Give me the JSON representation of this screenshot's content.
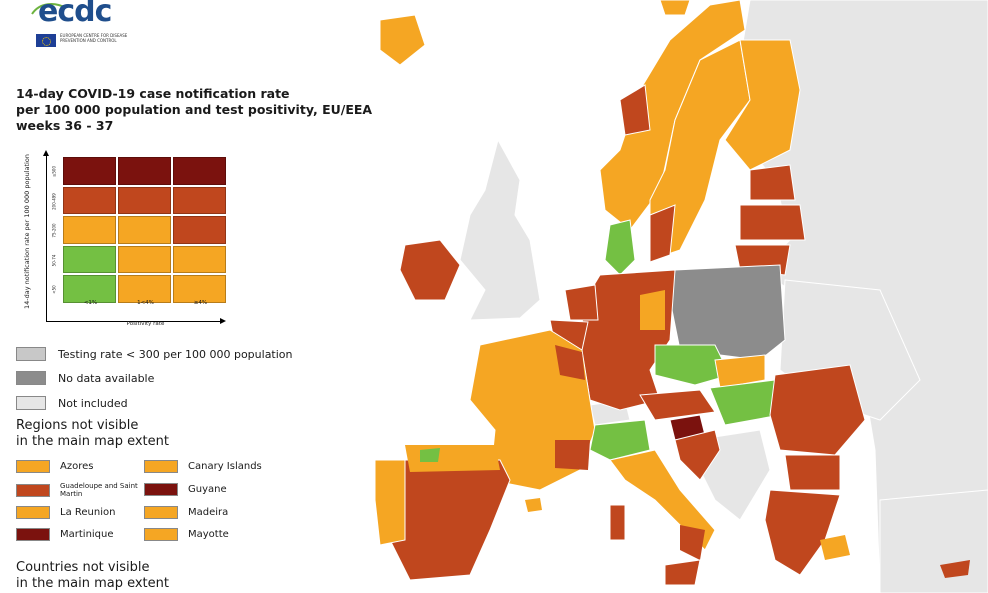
{
  "logo": {
    "wordmark": "ecdc",
    "subtitle": "EUROPEAN CENTRE FOR DISEASE PREVENTION AND CONTROL"
  },
  "title": {
    "line1": "14-day COVID-19 case notification rate",
    "line2": "per 100 000 population and test positivity, EU/EEA",
    "line3": "weeks 36 - 37"
  },
  "colors": {
    "green": "#74c043",
    "orange": "#f5a623",
    "red": "#c0471e",
    "darkred": "#7b120e",
    "testing_low": "#c8c8c8",
    "no_data": "#8c8c8c",
    "not_included": "#e6e6e6"
  },
  "matrix": {
    "y_axis_label": "14-day notification rate per 100 000 population",
    "y_ticks": [
      "≥500",
      "200-499",
      "75-200",
      "50-74",
      "<50"
    ],
    "x_ticks": [
      "<1%",
      "1<4%",
      "≥4%"
    ],
    "x_axis_label": "Positivity rate",
    "cells": [
      [
        "darkred",
        "darkred",
        "darkred"
      ],
      [
        "red",
        "red",
        "red"
      ],
      [
        "orange",
        "orange",
        "red"
      ],
      [
        "green",
        "orange",
        "orange"
      ],
      [
        "green",
        "orange",
        "orange"
      ]
    ]
  },
  "legend": {
    "testing": "Testing rate < 300 per 100 000 population",
    "no_data": "No data available",
    "not_included": "Not included"
  },
  "regions": {
    "heading_line1": "Regions not visible",
    "heading_line2": "in the main map extent",
    "items": [
      {
        "name": "Azores",
        "color": "orange"
      },
      {
        "name": "Guadeloupe and Saint Martin",
        "color": "red"
      },
      {
        "name": "La Reunion",
        "color": "orange"
      },
      {
        "name": "Martinique",
        "color": "darkred"
      },
      {
        "name": "Canary Islands",
        "color": "orange"
      },
      {
        "name": "Guyane",
        "color": "darkred"
      },
      {
        "name": "Madeira",
        "color": "orange"
      },
      {
        "name": "Mayotte",
        "color": "orange"
      }
    ]
  },
  "countries": {
    "heading_line1": "Countries not visible",
    "heading_line2": "in the main map extent"
  }
}
